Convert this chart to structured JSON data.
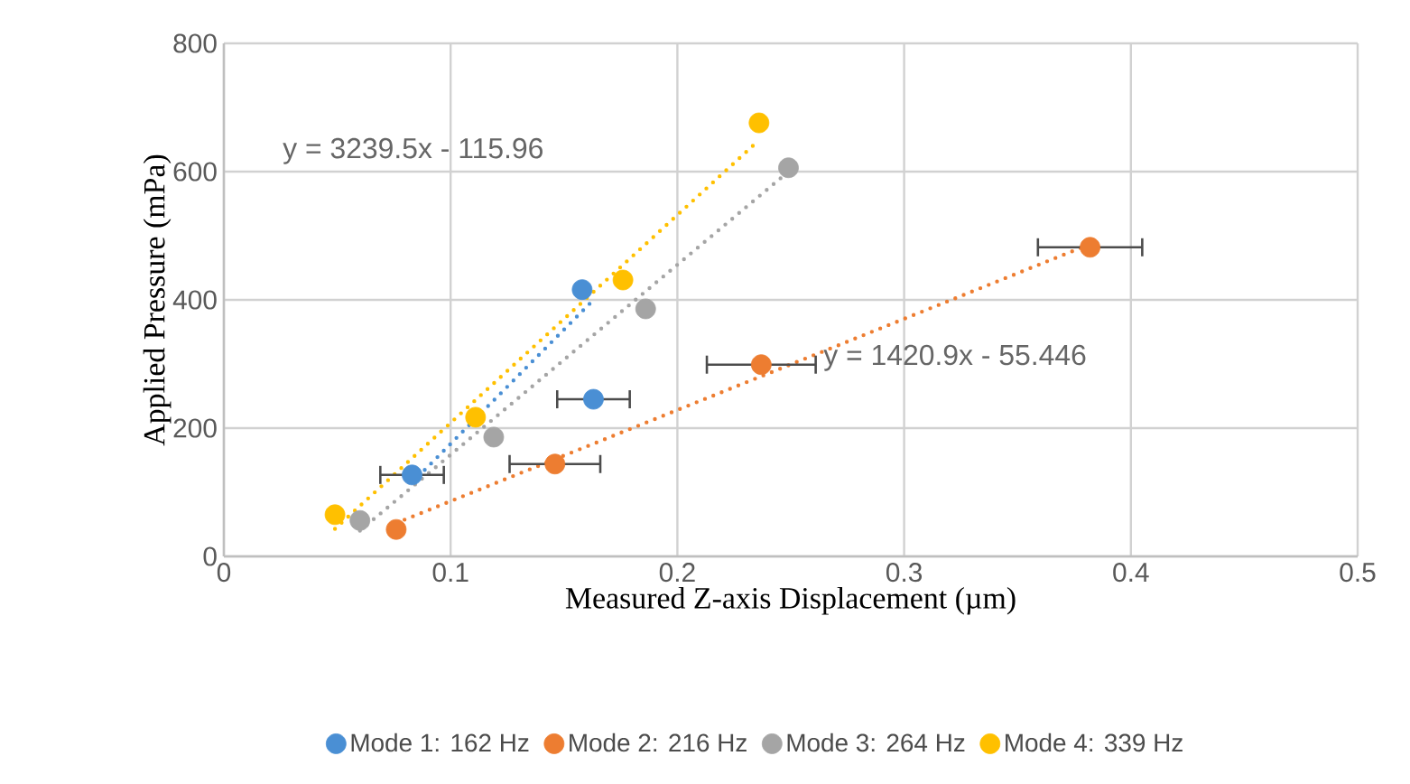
{
  "chart_data": {
    "type": "scatter",
    "xlabel": "Measured Z-axis Displacement (µm)",
    "ylabel": "Applied Pressure (mPa)",
    "xlim": [
      0,
      0.5
    ],
    "ylim": [
      0,
      800
    ],
    "xticks": [
      0,
      0.1,
      0.2,
      0.3,
      0.4,
      0.5
    ],
    "yticks": [
      0,
      200,
      400,
      600,
      800
    ],
    "grid": true,
    "legend": "bottom",
    "marker": "circle",
    "series": [
      {
        "name": "Mode 1: 162 Hz",
        "color": "#4a8fd4",
        "x": [
          0.083,
          0.158,
          0.163
        ],
        "values": [
          127,
          416,
          245
        ],
        "xerrors": [
          0.014,
          null,
          0.016
        ]
      },
      {
        "name": "Mode 2: 216 Hz",
        "color": "#ed7d31",
        "x": [
          0.076,
          0.146,
          0.237,
          0.382
        ],
        "values": [
          42,
          144,
          299,
          482
        ],
        "xerrors": [
          null,
          0.02,
          0.024,
          0.023
        ]
      },
      {
        "name": "Mode 3: 264 Hz",
        "color": "#a5a5a5",
        "x": [
          0.06,
          0.119,
          0.186,
          0.249
        ],
        "values": [
          56,
          186,
          386,
          606
        ]
      },
      {
        "name": "Mode 4: 339 Hz",
        "color": "#ffc000",
        "x": [
          0.049,
          0.111,
          0.176,
          0.236
        ],
        "values": [
          65,
          217,
          431,
          676
        ]
      },
      {
        "type": "line",
        "color": "#4a8fd4",
        "x": [
          0.083,
          0.163
        ],
        "values": [
          115,
          400
        ],
        "marker": "none",
        "line_style": "dotted"
      },
      {
        "type": "line",
        "color": "#ed7d31",
        "x": [
          0.076,
          0.382
        ],
        "values": [
          52,
          487
        ],
        "marker": "none",
        "line_style": "dotted"
      },
      {
        "type": "line",
        "color": "#a5a5a5",
        "x": [
          0.06,
          0.249
        ],
        "values": [
          40,
          600
        ],
        "marker": "none",
        "line_style": "dotted"
      },
      {
        "type": "line",
        "color": "#ffc000",
        "x": [
          0.049,
          0.236
        ],
        "values": [
          43,
          649
        ],
        "marker": "none",
        "line_style": "dotted"
      }
    ],
    "annotations": [
      "y = 3239.5x - 115.96",
      "y = 1420.9x - 55.446"
    ]
  }
}
